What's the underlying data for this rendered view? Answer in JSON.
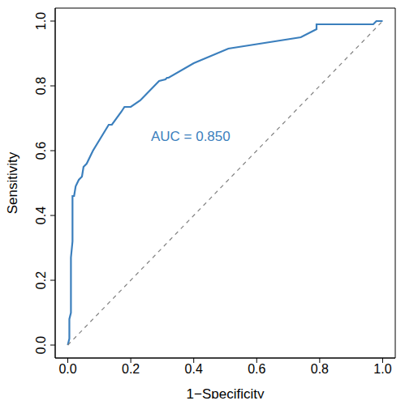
{
  "chart_data": {
    "type": "line",
    "annotation": "AUC = 0.850",
    "xlabel": "1−Specificity",
    "ylabel": "Sensitivity",
    "xlim": [
      -0.04,
      1.04
    ],
    "ylim": [
      -0.04,
      1.04
    ],
    "xticks": [
      {
        "value": 0,
        "label": "0.0"
      },
      {
        "value": 0.2,
        "label": "0.2"
      },
      {
        "value": 0.4,
        "label": "0.4"
      },
      {
        "value": 0.6,
        "label": "0.6"
      },
      {
        "value": 0.8,
        "label": "0.8"
      },
      {
        "value": 1,
        "label": "1.0"
      }
    ],
    "yticks": [
      {
        "value": 0,
        "label": "0.0"
      },
      {
        "value": 0.2,
        "label": "0.2"
      },
      {
        "value": 0.4,
        "label": "0.4"
      },
      {
        "value": 0.6,
        "label": "0.6"
      },
      {
        "value": 0.8,
        "label": "0.8"
      },
      {
        "value": 1,
        "label": "1.0"
      }
    ],
    "grid": false,
    "series": [
      {
        "color": "#3b7fbd",
        "line_style": "solid",
        "x": [
          0,
          0.005,
          0.005,
          0.01,
          0.01,
          0.015,
          0.015,
          0.02,
          0.025,
          0.035,
          0.045,
          0.05,
          0.06,
          0.08,
          0.13,
          0.14,
          0.17,
          0.18,
          0.2,
          0.23,
          0.29,
          0.31,
          0.315,
          0.32,
          0.4,
          0.51,
          0.74,
          0.79,
          0.79,
          0.97,
          0.98,
          1
        ],
        "values": [
          0,
          0.02,
          0.08,
          0.1,
          0.27,
          0.32,
          0.46,
          0.46,
          0.49,
          0.51,
          0.52,
          0.55,
          0.56,
          0.6,
          0.68,
          0.68,
          0.72,
          0.735,
          0.735,
          0.755,
          0.815,
          0.82,
          0.825,
          0.825,
          0.87,
          0.915,
          0.95,
          0.975,
          0.99,
          0.99,
          1,
          1
        ]
      },
      {
        "color": "#808080",
        "line_style": "dashed",
        "x": [
          0,
          1
        ],
        "values": [
          0,
          1
        ]
      }
    ]
  }
}
